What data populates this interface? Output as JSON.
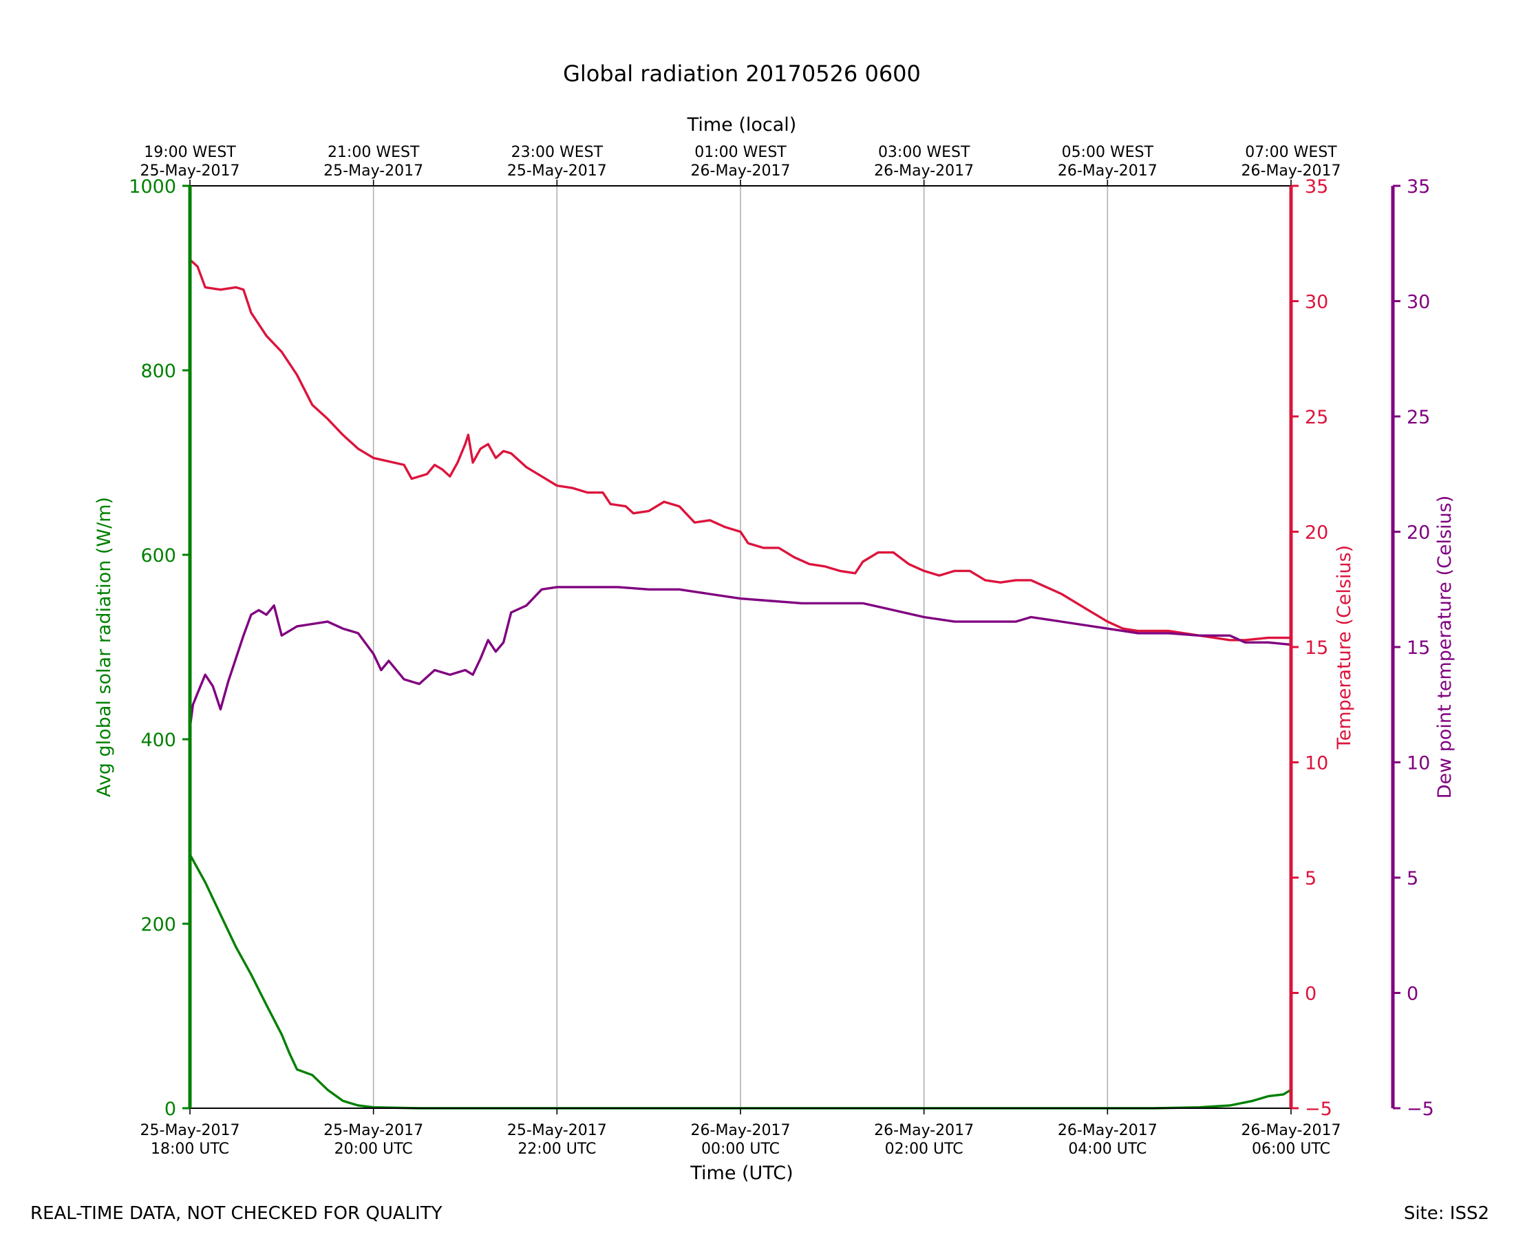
{
  "footer": {
    "left_note": "REAL-TIME DATA, NOT CHECKED FOR QUALITY",
    "site": "Site: ISS2"
  },
  "chart_data": {
    "type": "line",
    "title": "Global radiation 20170526 0600",
    "xlabel": "Time (UTC)",
    "x2label": "Time (local)",
    "x_range": [
      "2017-05-25 18:00",
      "2017-05-26 06:00"
    ],
    "x_ticks": [
      {
        "time": "2017-05-25 18:00",
        "date": "25-May-2017",
        "utc": "18:00 UTC",
        "local_time": "19:00 WEST",
        "local_date": "25-May-2017"
      },
      {
        "time": "2017-05-25 20:00",
        "date": "25-May-2017",
        "utc": "20:00 UTC",
        "local_time": "21:00 WEST",
        "local_date": "25-May-2017"
      },
      {
        "time": "2017-05-25 22:00",
        "date": "25-May-2017",
        "utc": "22:00 UTC",
        "local_time": "23:00 WEST",
        "local_date": "25-May-2017"
      },
      {
        "time": "2017-05-26 00:00",
        "date": "26-May-2017",
        "utc": "00:00 UTC",
        "local_time": "01:00 WEST",
        "local_date": "26-May-2017"
      },
      {
        "time": "2017-05-26 02:00",
        "date": "26-May-2017",
        "utc": "02:00 UTC",
        "local_time": "03:00 WEST",
        "local_date": "26-May-2017"
      },
      {
        "time": "2017-05-26 04:00",
        "date": "26-May-2017",
        "utc": "04:00 UTC",
        "local_time": "05:00 WEST",
        "local_date": "26-May-2017"
      },
      {
        "time": "2017-05-26 06:00",
        "date": "26-May-2017",
        "utc": "06:00 UTC",
        "local_time": "07:00 WEST",
        "local_date": "26-May-2017"
      }
    ],
    "grid": "vertical",
    "axes": {
      "radiation": {
        "label": "Avg global solar radiation (W/m)",
        "range": [
          0,
          1000
        ],
        "ticks": [
          0,
          200,
          400,
          600,
          800,
          1000
        ],
        "color": "#008000",
        "side": "left"
      },
      "temperature": {
        "label": "Temperature (Celsius)",
        "range": [
          -5,
          35
        ],
        "ticks": [
          "−5",
          "0",
          "5",
          "10",
          "15",
          "20",
          "25",
          "30",
          "35"
        ],
        "color": "#dc143c",
        "side": "right"
      },
      "dewpoint": {
        "label": "Dew point temperature (Celsius)",
        "range": [
          -5,
          35
        ],
        "ticks": [
          "−5",
          "0",
          "5",
          "10",
          "15",
          "20",
          "25",
          "30",
          "35"
        ],
        "color": "#800080",
        "side": "far-right"
      }
    },
    "series": [
      {
        "axis": "radiation",
        "color": "#008000",
        "points": [
          [
            "2017-05-25 18:00",
            275
          ],
          [
            "2017-05-25 18:10",
            245
          ],
          [
            "2017-05-25 18:20",
            210
          ],
          [
            "2017-05-25 18:30",
            175
          ],
          [
            "2017-05-25 18:40",
            145
          ],
          [
            "2017-05-25 18:50",
            112
          ],
          [
            "2017-05-25 19:00",
            80
          ],
          [
            "2017-05-25 19:05",
            60
          ],
          [
            "2017-05-25 19:10",
            42
          ],
          [
            "2017-05-25 19:20",
            36
          ],
          [
            "2017-05-25 19:30",
            20
          ],
          [
            "2017-05-25 19:40",
            8
          ],
          [
            "2017-05-25 19:50",
            3
          ],
          [
            "2017-05-25 20:00",
            1
          ],
          [
            "2017-05-25 20:30",
            0
          ],
          [
            "2017-05-26 04:30",
            0
          ],
          [
            "2017-05-26 05:00",
            1
          ],
          [
            "2017-05-26 05:20",
            3
          ],
          [
            "2017-05-26 05:35",
            8
          ],
          [
            "2017-05-26 05:45",
            13
          ],
          [
            "2017-05-26 05:55",
            15
          ],
          [
            "2017-05-26 06:00",
            20
          ]
        ]
      },
      {
        "axis": "temperature",
        "color": "#dc143c",
        "points": [
          [
            "2017-05-25 18:00",
            31.8
          ],
          [
            "2017-05-25 18:05",
            31.5
          ],
          [
            "2017-05-25 18:10",
            30.6
          ],
          [
            "2017-05-25 18:20",
            30.5
          ],
          [
            "2017-05-25 18:30",
            30.6
          ],
          [
            "2017-05-25 18:35",
            30.5
          ],
          [
            "2017-05-25 18:40",
            29.5
          ],
          [
            "2017-05-25 18:50",
            28.5
          ],
          [
            "2017-05-25 19:00",
            27.8
          ],
          [
            "2017-05-25 19:10",
            26.8
          ],
          [
            "2017-05-25 19:20",
            25.5
          ],
          [
            "2017-05-25 19:30",
            24.9
          ],
          [
            "2017-05-25 19:40",
            24.2
          ],
          [
            "2017-05-25 19:50",
            23.6
          ],
          [
            "2017-05-25 20:00",
            23.2
          ],
          [
            "2017-05-25 20:20",
            22.9
          ],
          [
            "2017-05-25 20:25",
            22.3
          ],
          [
            "2017-05-25 20:35",
            22.5
          ],
          [
            "2017-05-25 20:40",
            22.9
          ],
          [
            "2017-05-25 20:45",
            22.7
          ],
          [
            "2017-05-25 20:50",
            22.4
          ],
          [
            "2017-05-25 20:55",
            23.0
          ],
          [
            "2017-05-25 21:00",
            23.8
          ],
          [
            "2017-05-25 21:02",
            24.2
          ],
          [
            "2017-05-25 21:05",
            23.0
          ],
          [
            "2017-05-25 21:10",
            23.6
          ],
          [
            "2017-05-25 21:15",
            23.8
          ],
          [
            "2017-05-25 21:20",
            23.2
          ],
          [
            "2017-05-25 21:25",
            23.5
          ],
          [
            "2017-05-25 21:30",
            23.4
          ],
          [
            "2017-05-25 21:40",
            22.8
          ],
          [
            "2017-05-25 21:50",
            22.4
          ],
          [
            "2017-05-25 22:00",
            22.0
          ],
          [
            "2017-05-25 22:10",
            21.9
          ],
          [
            "2017-05-25 22:20",
            21.7
          ],
          [
            "2017-05-25 22:30",
            21.7
          ],
          [
            "2017-05-25 22:35",
            21.2
          ],
          [
            "2017-05-25 22:45",
            21.1
          ],
          [
            "2017-05-25 22:50",
            20.8
          ],
          [
            "2017-05-25 23:00",
            20.9
          ],
          [
            "2017-05-25 23:10",
            21.3
          ],
          [
            "2017-05-25 23:20",
            21.1
          ],
          [
            "2017-05-25 23:30",
            20.4
          ],
          [
            "2017-05-25 23:40",
            20.5
          ],
          [
            "2017-05-25 23:50",
            20.2
          ],
          [
            "2017-05-26 00:00",
            20.0
          ],
          [
            "2017-05-26 00:05",
            19.5
          ],
          [
            "2017-05-26 00:15",
            19.3
          ],
          [
            "2017-05-26 00:25",
            19.3
          ],
          [
            "2017-05-26 00:35",
            18.9
          ],
          [
            "2017-05-26 00:45",
            18.6
          ],
          [
            "2017-05-26 00:55",
            18.5
          ],
          [
            "2017-05-26 01:05",
            18.3
          ],
          [
            "2017-05-26 01:15",
            18.2
          ],
          [
            "2017-05-26 01:20",
            18.7
          ],
          [
            "2017-05-26 01:30",
            19.1
          ],
          [
            "2017-05-26 01:40",
            19.1
          ],
          [
            "2017-05-26 01:50",
            18.6
          ],
          [
            "2017-05-26 02:00",
            18.3
          ],
          [
            "2017-05-26 02:10",
            18.1
          ],
          [
            "2017-05-26 02:20",
            18.3
          ],
          [
            "2017-05-26 02:30",
            18.3
          ],
          [
            "2017-05-26 02:40",
            17.9
          ],
          [
            "2017-05-26 02:50",
            17.8
          ],
          [
            "2017-05-26 03:00",
            17.9
          ],
          [
            "2017-05-26 03:10",
            17.9
          ],
          [
            "2017-05-26 03:20",
            17.6
          ],
          [
            "2017-05-26 03:30",
            17.3
          ],
          [
            "2017-05-26 03:40",
            16.9
          ],
          [
            "2017-05-26 03:50",
            16.5
          ],
          [
            "2017-05-26 04:00",
            16.1
          ],
          [
            "2017-05-26 04:10",
            15.8
          ],
          [
            "2017-05-26 04:20",
            15.7
          ],
          [
            "2017-05-26 04:40",
            15.7
          ],
          [
            "2017-05-26 04:50",
            15.6
          ],
          [
            "2017-05-26 05:00",
            15.5
          ],
          [
            "2017-05-26 05:10",
            15.4
          ],
          [
            "2017-05-26 05:20",
            15.3
          ],
          [
            "2017-05-26 05:30",
            15.3
          ],
          [
            "2017-05-26 05:45",
            15.4
          ],
          [
            "2017-05-26 06:00",
            15.4
          ]
        ]
      },
      {
        "axis": "dewpoint",
        "color": "#800080",
        "points": [
          [
            "2017-05-25 18:00",
            11.5
          ],
          [
            "2017-05-25 18:02",
            12.5
          ],
          [
            "2017-05-25 18:05",
            13.0
          ],
          [
            "2017-05-25 18:10",
            13.8
          ],
          [
            "2017-05-25 18:15",
            13.3
          ],
          [
            "2017-05-25 18:20",
            12.3
          ],
          [
            "2017-05-25 18:25",
            13.5
          ],
          [
            "2017-05-25 18:30",
            14.5
          ],
          [
            "2017-05-25 18:35",
            15.5
          ],
          [
            "2017-05-25 18:40",
            16.4
          ],
          [
            "2017-05-25 18:45",
            16.6
          ],
          [
            "2017-05-25 18:50",
            16.4
          ],
          [
            "2017-05-25 18:55",
            16.8
          ],
          [
            "2017-05-25 19:00",
            15.5
          ],
          [
            "2017-05-25 19:10",
            15.9
          ],
          [
            "2017-05-25 19:20",
            16.0
          ],
          [
            "2017-05-25 19:30",
            16.1
          ],
          [
            "2017-05-25 19:40",
            15.8
          ],
          [
            "2017-05-25 19:50",
            15.6
          ],
          [
            "2017-05-25 20:00",
            14.7
          ],
          [
            "2017-05-25 20:05",
            14.0
          ],
          [
            "2017-05-25 20:10",
            14.4
          ],
          [
            "2017-05-25 20:20",
            13.6
          ],
          [
            "2017-05-25 20:30",
            13.4
          ],
          [
            "2017-05-25 20:40",
            14.0
          ],
          [
            "2017-05-25 20:50",
            13.8
          ],
          [
            "2017-05-25 21:00",
            14.0
          ],
          [
            "2017-05-25 21:05",
            13.8
          ],
          [
            "2017-05-25 21:10",
            14.5
          ],
          [
            "2017-05-25 21:15",
            15.3
          ],
          [
            "2017-05-25 21:20",
            14.8
          ],
          [
            "2017-05-25 21:25",
            15.2
          ],
          [
            "2017-05-25 21:30",
            16.5
          ],
          [
            "2017-05-25 21:40",
            16.8
          ],
          [
            "2017-05-25 21:50",
            17.5
          ],
          [
            "2017-05-25 22:00",
            17.6
          ],
          [
            "2017-05-25 22:20",
            17.6
          ],
          [
            "2017-05-25 22:40",
            17.6
          ],
          [
            "2017-05-25 23:00",
            17.5
          ],
          [
            "2017-05-25 23:20",
            17.5
          ],
          [
            "2017-05-25 23:40",
            17.3
          ],
          [
            "2017-05-26 00:00",
            17.1
          ],
          [
            "2017-05-26 00:20",
            17.0
          ],
          [
            "2017-05-26 00:40",
            16.9
          ],
          [
            "2017-05-26 01:00",
            16.9
          ],
          [
            "2017-05-26 01:20",
            16.9
          ],
          [
            "2017-05-26 01:40",
            16.6
          ],
          [
            "2017-05-26 02:00",
            16.3
          ],
          [
            "2017-05-26 02:20",
            16.1
          ],
          [
            "2017-05-26 02:40",
            16.1
          ],
          [
            "2017-05-26 03:00",
            16.1
          ],
          [
            "2017-05-26 03:10",
            16.3
          ],
          [
            "2017-05-26 03:20",
            16.2
          ],
          [
            "2017-05-26 03:40",
            16.0
          ],
          [
            "2017-05-26 04:00",
            15.8
          ],
          [
            "2017-05-26 04:20",
            15.6
          ],
          [
            "2017-05-26 04:40",
            15.6
          ],
          [
            "2017-05-26 05:00",
            15.5
          ],
          [
            "2017-05-26 05:20",
            15.5
          ],
          [
            "2017-05-26 05:30",
            15.2
          ],
          [
            "2017-05-26 05:45",
            15.2
          ],
          [
            "2017-05-26 06:00",
            15.1
          ]
        ]
      }
    ]
  }
}
